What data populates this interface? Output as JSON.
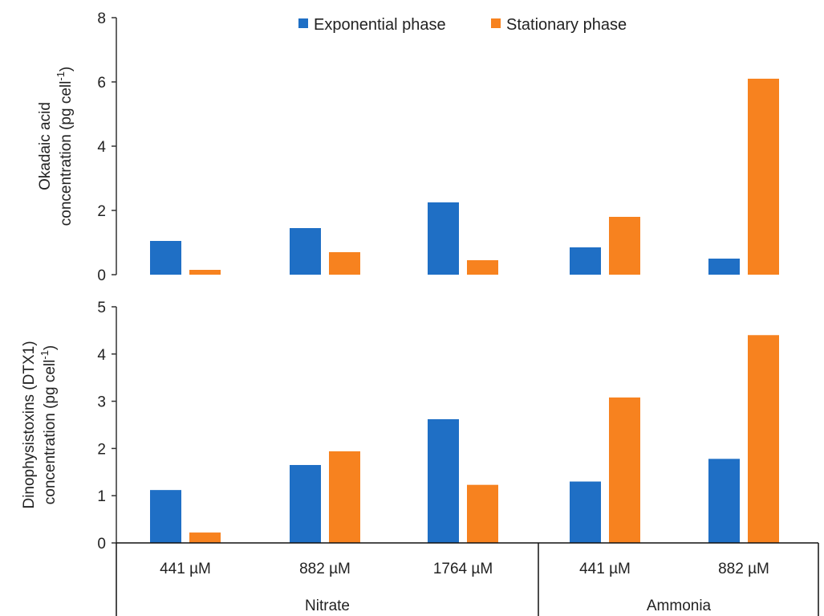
{
  "chart_data": [
    {
      "type": "bar",
      "ylabel_lines": [
        "Okadaic acid",
        "concentration (pg cell",
        "-1",
        ")"
      ],
      "ylim": [
        0,
        8
      ],
      "yticks": [
        0,
        2,
        4,
        6,
        8
      ],
      "categories": [
        "441 µM",
        "882 µM",
        "1764 µM",
        "441 µM",
        "882 µM"
      ],
      "series": [
        {
          "name": "Exponential phase",
          "color": "#1f6fc5",
          "values": [
            1.05,
            1.45,
            2.25,
            0.85,
            0.5
          ]
        },
        {
          "name": "Stationary phase",
          "color": "#f7821f",
          "values": [
            0.15,
            0.7,
            0.45,
            1.8,
            6.1
          ]
        }
      ],
      "legend_position": "top-center"
    },
    {
      "type": "bar",
      "ylabel_lines": [
        "Dinophysistoxins (DTX1)",
        "concentration (pg cell",
        "-1",
        ")"
      ],
      "ylim": [
        0,
        5
      ],
      "yticks": [
        0,
        1,
        2,
        3,
        4,
        5
      ],
      "categories": [
        "441 µM",
        "882 µM",
        "1764 µM",
        "441 µM",
        "882 µM"
      ],
      "series": [
        {
          "name": "Exponential phase",
          "color": "#1f6fc5",
          "values": [
            1.12,
            1.65,
            2.62,
            1.3,
            1.78
          ]
        },
        {
          "name": "Stationary phase",
          "color": "#f7821f",
          "values": [
            0.22,
            1.94,
            1.23,
            3.08,
            4.4
          ]
        }
      ]
    }
  ],
  "groups": [
    "Nitrate",
    "Ammonia"
  ]
}
